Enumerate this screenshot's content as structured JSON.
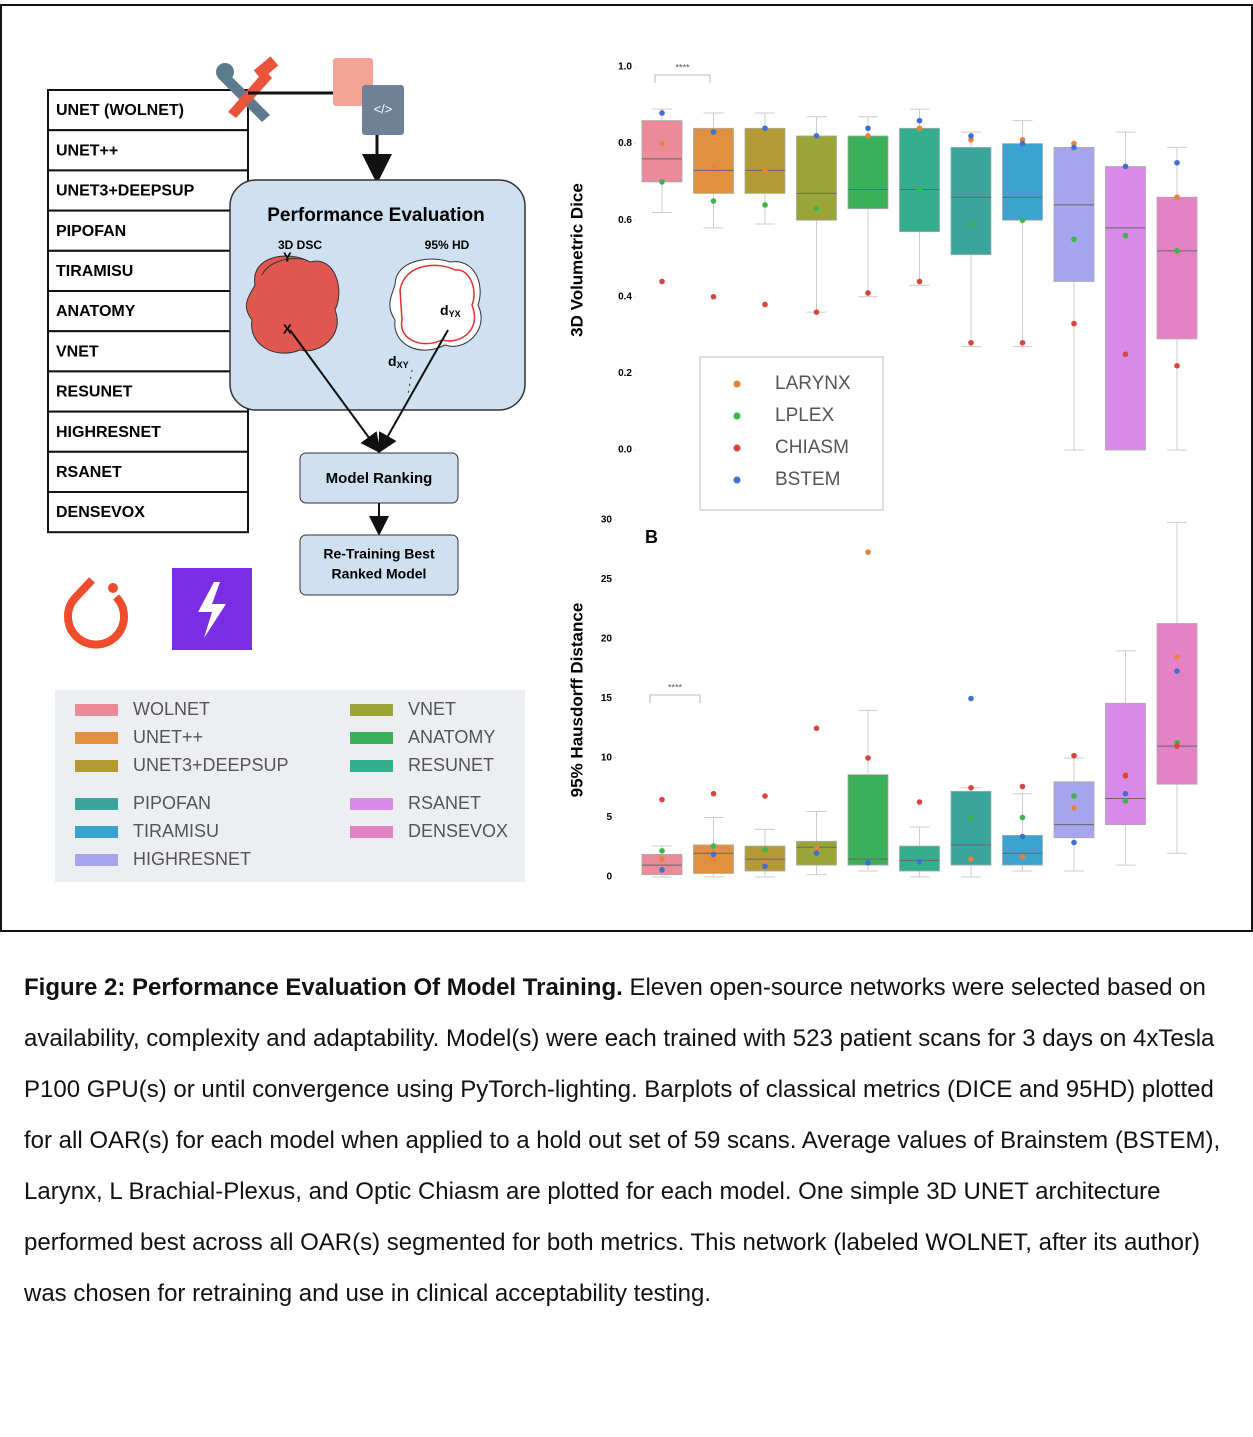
{
  "figure": {
    "model_list": [
      "UNET (WOLNET)",
      "UNET++",
      "UNET3+DEEPSUP",
      "PIPOFAN",
      "TIRAMISU",
      "ANATOMY",
      "VNET",
      "RESUNET",
      "HIGHRESNET",
      "RSANET",
      "DENSEVOX"
    ],
    "evaluation": {
      "title": "Performance Evaluation",
      "dsc": "3D DSC",
      "hd": "95% HD",
      "y": "Y",
      "x": "X",
      "d_yx": {
        "base": "d",
        "sub": "YX"
      },
      "d_xy": {
        "base": "d",
        "sub": "XY"
      }
    },
    "ranking": "Model Ranking",
    "retraining": [
      "Re-Training Best",
      "Ranked Model"
    ]
  },
  "chart_data": [
    {
      "type": "box",
      "ylabel": "3D Volumetric Dice",
      "annotation": "****",
      "ylim": [
        0,
        1
      ],
      "yticks": [
        {
          "value": 0,
          "label": "0.0"
        },
        0.2,
        0.4,
        0.6,
        0.8,
        {
          "value": 1,
          "label": "1.0"
        }
      ],
      "legend": "lower center",
      "boxes": [
        {
          "name": "WOLNET",
          "color": "#eb8a98",
          "whislo": 0.62,
          "q1": 0.7,
          "med": 0.76,
          "q3": 0.86,
          "whishi": 0.89
        },
        {
          "name": "UNET++",
          "color": "#e0913f",
          "whislo": 0.58,
          "q1": 0.67,
          "med": 0.73,
          "q3": 0.84,
          "whishi": 0.88
        },
        {
          "name": "UNET3+DEEPSUP",
          "color": "#b39a35",
          "whislo": 0.59,
          "q1": 0.67,
          "med": 0.73,
          "q3": 0.84,
          "whishi": 0.88
        },
        {
          "name": "VNET",
          "color": "#99a536",
          "whislo": 0.36,
          "q1": 0.6,
          "med": 0.67,
          "q3": 0.82,
          "whishi": 0.87
        },
        {
          "name": "ANATOMY",
          "color": "#3bb05a",
          "whislo": 0.4,
          "q1": 0.63,
          "med": 0.68,
          "q3": 0.82,
          "whishi": 0.87
        },
        {
          "name": "RESUNET",
          "color": "#34ae8c",
          "whislo": 0.43,
          "q1": 0.57,
          "med": 0.68,
          "q3": 0.84,
          "whishi": 0.89
        },
        {
          "name": "PIPOFAN",
          "color": "#3aa59c",
          "whislo": 0.27,
          "q1": 0.51,
          "med": 0.66,
          "q3": 0.79,
          "whishi": 0.83
        },
        {
          "name": "TIRAMISU",
          "color": "#3ba3d0",
          "whislo": 0.27,
          "q1": 0.6,
          "med": 0.66,
          "q3": 0.8,
          "whishi": 0.86
        },
        {
          "name": "HIGHRESNET",
          "color": "#a7a4ee",
          "whislo": 0,
          "q1": 0.44,
          "med": 0.64,
          "q3": 0.79,
          "whishi": 0.79
        },
        {
          "name": "RSANET",
          "color": "#d98ae8",
          "whislo": 0,
          "q1": 0,
          "med": 0.58,
          "q3": 0.74,
          "whishi": 0.83
        },
        {
          "name": "DENSEVOX",
          "color": "#e582c6",
          "whislo": 0,
          "q1": 0.29,
          "med": 0.52,
          "q3": 0.66,
          "whishi": 0.79
        }
      ],
      "series": [
        {
          "name": "LARYNX",
          "color": "#e8823a",
          "values": [
            0.8,
            0.74,
            0.73,
            0.82,
            0.82,
            0.84,
            0.81,
            0.81,
            0.8,
            0.74,
            0.66
          ]
        },
        {
          "name": "LPLEX",
          "color": "#3cb54a",
          "values": [
            0.7,
            0.65,
            0.64,
            0.63,
            0.65,
            0.68,
            0.59,
            0.6,
            0.55,
            0.56,
            0.52
          ]
        },
        {
          "name": "CHIASM",
          "color": "#d9443c",
          "values": [
            0.44,
            0.4,
            0.38,
            0.36,
            0.41,
            0.44,
            0.28,
            0.28,
            0.33,
            0.25,
            0.22
          ]
        },
        {
          "name": "BSTEM",
          "color": "#3f6fd1",
          "values": [
            0.88,
            0.83,
            0.84,
            0.82,
            0.84,
            0.86,
            0.82,
            0.8,
            0.79,
            0.74,
            0.75
          ]
        }
      ]
    },
    {
      "type": "box",
      "ylabel": "95% Hausdorff Distance",
      "panel_label": "B",
      "annotation": "****",
      "ylim": [
        0,
        30
      ],
      "yticks": [
        0,
        5,
        10,
        15,
        20,
        25,
        30
      ],
      "boxes": [
        {
          "color": "#eb8a98",
          "whislo": 0,
          "q1": 0.2,
          "med": 1.0,
          "q3": 1.9,
          "whishi": 2.6
        },
        {
          "color": "#e0913f",
          "whislo": 0,
          "q1": 0.3,
          "med": 2.0,
          "q3": 2.7,
          "whishi": 5.0
        },
        {
          "color": "#b39a35",
          "whislo": 0,
          "q1": 0.5,
          "med": 1.5,
          "q3": 2.6,
          "whishi": 4.0
        },
        {
          "color": "#99a536",
          "whislo": 0.2,
          "q1": 1.0,
          "med": 2.5,
          "q3": 3.0,
          "whishi": 5.5
        },
        {
          "color": "#3bb05a",
          "whislo": 0.5,
          "q1": 1.0,
          "med": 1.5,
          "q3": 8.6,
          "whishi": 14.0
        },
        {
          "color": "#34ae8c",
          "whislo": 0,
          "q1": 0.5,
          "med": 1.4,
          "q3": 2.6,
          "whishi": 4.2
        },
        {
          "color": "#3aa59c",
          "whislo": 0,
          "q1": 1.0,
          "med": 2.7,
          "q3": 7.2,
          "whishi": 7.5
        },
        {
          "color": "#3ba3d0",
          "whislo": 0.5,
          "q1": 1.0,
          "med": 2.0,
          "q3": 3.5,
          "whishi": 7.0
        },
        {
          "color": "#a7a4ee",
          "whislo": 0.5,
          "q1": 3.3,
          "med": 4.4,
          "q3": 8.0,
          "whishi": 10.0
        },
        {
          "color": "#d98ae8",
          "whislo": 1.0,
          "q1": 4.4,
          "med": 6.6,
          "q3": 14.6,
          "whishi": 19.0
        },
        {
          "color": "#e582c6",
          "whislo": 2.0,
          "q1": 7.8,
          "med": 11.0,
          "q3": 21.3,
          "whishi": 29.8
        }
      ],
      "series": [
        {
          "color": "#e8823a",
          "values": [
            1.5,
            1.5,
            1.2,
            2.4,
            27.3,
            1.3,
            1.5,
            1.7,
            5.8,
            8.6,
            18.5
          ]
        },
        {
          "color": "#3cb54a",
          "values": [
            2.2,
            2.6,
            2.3,
            2.0,
            3.3,
            1.3,
            5.0,
            5.0,
            6.8,
            6.4,
            11.3
          ]
        },
        {
          "color": "#d9443c",
          "values": [
            6.5,
            7.0,
            6.8,
            12.5,
            10.0,
            6.3,
            7.5,
            7.6,
            10.2,
            8.5,
            11.0
          ]
        },
        {
          "color": "#3f6fd1",
          "values": [
            0.6,
            1.9,
            0.9,
            2.0,
            1.2,
            1.3,
            15.0,
            3.4,
            2.9,
            7.0,
            17.3
          ]
        }
      ]
    }
  ],
  "caption": {
    "title": "Figure 2: Performance Evaluation Of Model Training.",
    "text": "Eleven open-source networks were selected based on availability, complexity and adaptability. Model(s) were each trained with 523 patient scans for 3 days on 4xTesla P100 GPU(s) or until convergence using PyTorch-lighting. Barplots of classical metrics (DICE and 95HD) plotted for all OAR(s) for each model when applied to a hold out set of 59 scans. Average values of Brainstem (BSTEM), Larynx, L Brachial-Plexus, and Optic Chiasm are plotted for each model. One simple 3D UNET architecture performed best across all OAR(s) segmented for both metrics. This network (labeled WOLNET, after its author) was chosen for retraining and use in clinical acceptability testing."
  }
}
